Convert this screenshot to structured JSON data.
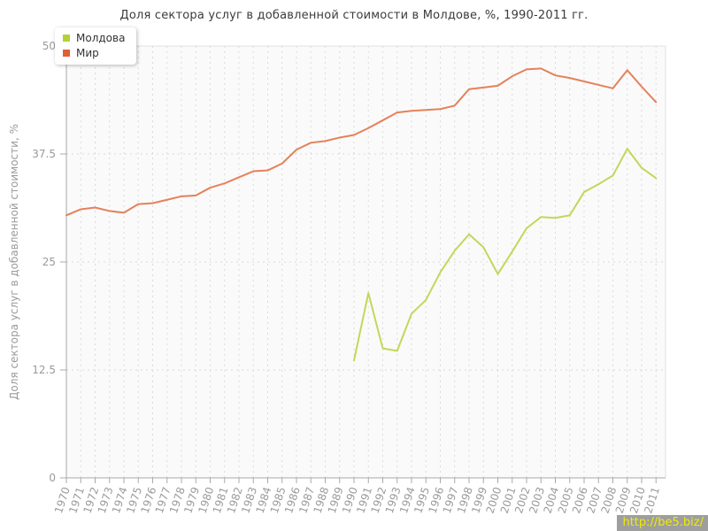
{
  "page": {
    "title": "Доля сектора услуг в добавленной стоимости в Молдове, %, 1990-2011 гг."
  },
  "legend": {
    "items": [
      {
        "label": "Молдова",
        "color": "#b2d233"
      },
      {
        "label": "Мир",
        "color": "#df6033"
      }
    ]
  },
  "watermark": {
    "text": "http://be5.biz/",
    "bg": "#9e9e9e",
    "color": "#f0eb00"
  },
  "chart_data": {
    "type": "line",
    "title": "Доля сектора услуг в добавленной стоимости в Молдове, %, 1990-2011 гг.",
    "xlabel": "",
    "ylabel": "Доля сектора услуг в добавленной стоимости, %",
    "ylim": [
      0,
      50
    ],
    "yticks": [
      0,
      12.5,
      25,
      37.5,
      50
    ],
    "grid": true,
    "legend_position": "top-left",
    "x": [
      1970,
      1971,
      1972,
      1973,
      1974,
      1975,
      1976,
      1977,
      1978,
      1979,
      1980,
      1981,
      1982,
      1983,
      1984,
      1985,
      1986,
      1987,
      1988,
      1989,
      1990,
      1991,
      1992,
      1993,
      1994,
      1995,
      1996,
      1997,
      1998,
      1999,
      2000,
      2001,
      2002,
      2003,
      2004,
      2005,
      2006,
      2007,
      2008,
      2009,
      2010,
      2011
    ],
    "series": [
      {
        "name": "Молдова",
        "color": "#b2d233",
        "line_color": "#c3d75a",
        "values": [
          null,
          null,
          null,
          null,
          null,
          null,
          null,
          null,
          null,
          null,
          null,
          null,
          null,
          null,
          null,
          null,
          null,
          null,
          null,
          null,
          13.6,
          21.4,
          15.0,
          14.7,
          19.0,
          20.6,
          23.8,
          26.3,
          28.2,
          26.7,
          23.6,
          26.2,
          28.9,
          30.2,
          30.1,
          30.4,
          33.1,
          34.0,
          35.0,
          38.1,
          35.9,
          34.7
        ]
      },
      {
        "name": "Мир",
        "color": "#df6033",
        "line_color": "#e5815a",
        "values": [
          30.4,
          31.1,
          31.3,
          30.9,
          30.7,
          31.7,
          31.8,
          32.2,
          32.6,
          32.7,
          33.6,
          34.1,
          34.8,
          35.5,
          35.6,
          36.4,
          38.0,
          38.8,
          39.0,
          39.4,
          39.7,
          40.5,
          41.4,
          42.3,
          42.5,
          42.6,
          42.7,
          43.1,
          45.0,
          45.2,
          45.4,
          46.5,
          47.3,
          47.4,
          46.6,
          46.3,
          45.9,
          45.5,
          45.1,
          47.2,
          45.3,
          43.5
        ]
      }
    ]
  }
}
